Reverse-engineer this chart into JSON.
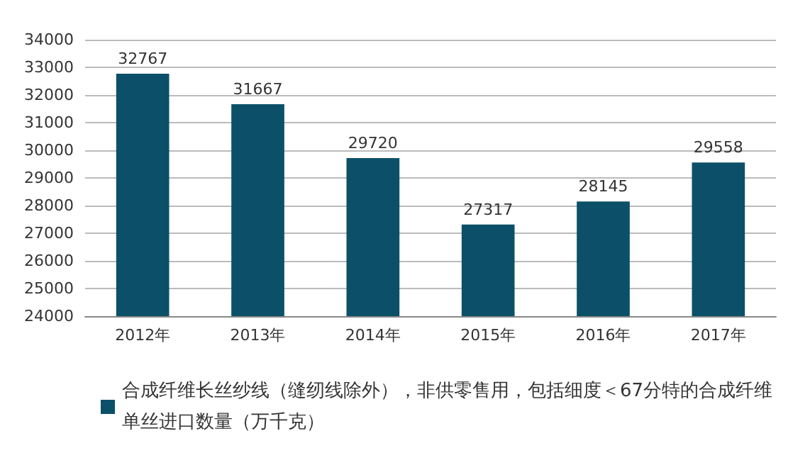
{
  "chart_data": {
    "type": "bar",
    "categories": [
      "2012年",
      "2013年",
      "2014年",
      "2015年",
      "2016年",
      "2017年"
    ],
    "series": [
      {
        "name": "合成纤维长丝纱线（缝纫线除外），非供零售用，包括细度＜67分特的合成纤维单丝进口数量（万千克）",
        "color": "#0b5068",
        "values": [
          32767,
          31667,
          29720,
          27317,
          28145,
          29558
        ]
      }
    ],
    "ylim": [
      24000,
      34000
    ],
    "yticks": [
      24000,
      25000,
      26000,
      27000,
      28000,
      29000,
      30000,
      31000,
      32000,
      33000,
      34000
    ],
    "grid": "y",
    "legend": "bottom",
    "data_labels": true
  }
}
